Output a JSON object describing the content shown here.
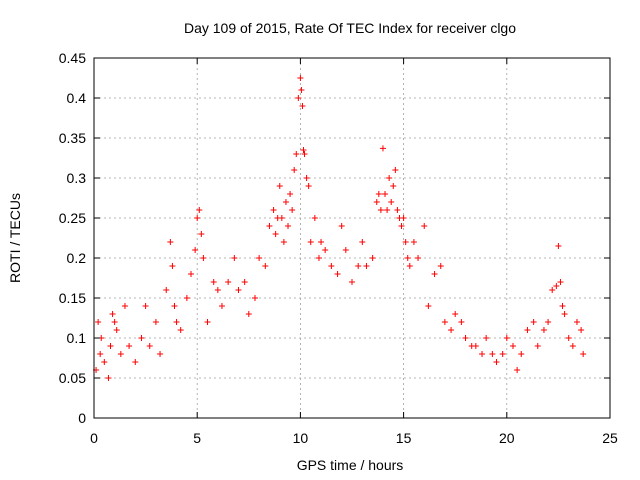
{
  "chart_data": {
    "type": "scatter",
    "title": "Day 109 of 2015, Rate Of TEC Index for receiver clgo",
    "xlabel": "GPS time / hours",
    "ylabel": "ROTI / TECUs",
    "xlim": [
      0,
      25
    ],
    "ylim": [
      0,
      0.45
    ],
    "xticks": [
      "0",
      "5",
      "10",
      "15",
      "20",
      "25"
    ],
    "yticks": [
      "0",
      "0.05",
      "0.1",
      "0.15",
      "0.2",
      "0.25",
      "0.3",
      "0.35",
      "0.4",
      "0.45"
    ],
    "grid": true,
    "marker": "+",
    "color": "#ff0000",
    "series": [
      {
        "x": [
          0.1,
          0.2,
          0.3,
          0.35,
          0.5,
          0.7,
          0.8,
          0.9,
          1.0,
          1.1,
          1.3,
          1.5,
          1.7,
          2.0,
          2.3,
          2.5,
          2.7,
          3.0,
          3.2,
          3.5,
          3.7,
          3.8,
          3.9,
          4.0,
          4.2,
          4.5,
          4.7,
          4.9,
          5.0,
          5.1,
          5.2,
          5.3,
          5.5,
          5.8,
          6.0,
          6.2,
          6.5,
          6.8,
          7.0,
          7.3,
          7.5,
          7.8,
          8.0,
          8.3,
          8.5,
          8.7,
          8.8,
          8.9,
          9.0,
          9.1,
          9.2,
          9.3,
          9.4,
          9.5,
          9.6,
          9.7,
          9.8,
          9.9,
          10.0,
          10.05,
          10.1,
          10.15,
          10.2,
          10.3,
          10.4,
          10.5,
          10.7,
          10.9,
          11.0,
          11.2,
          11.5,
          11.8,
          12.0,
          12.2,
          12.5,
          12.8,
          13.0,
          13.2,
          13.5,
          13.7,
          13.8,
          13.9,
          14.0,
          14.1,
          14.2,
          14.3,
          14.4,
          14.5,
          14.6,
          14.7,
          14.8,
          14.9,
          15.0,
          15.1,
          15.2,
          15.3,
          15.5,
          15.7,
          16.0,
          16.2,
          16.5,
          16.8,
          17.0,
          17.3,
          17.5,
          17.8,
          18.0,
          18.3,
          18.5,
          18.8,
          19.0,
          19.3,
          19.5,
          19.8,
          20.0,
          20.3,
          20.5,
          20.7,
          21.0,
          21.3,
          21.5,
          21.8,
          22.0,
          22.2,
          22.4,
          22.5,
          22.6,
          22.7,
          22.8,
          23.0,
          23.2,
          23.4,
          23.6,
          23.7
        ],
        "y": [
          0.06,
          0.12,
          0.08,
          0.1,
          0.07,
          0.05,
          0.09,
          0.13,
          0.12,
          0.11,
          0.08,
          0.14,
          0.09,
          0.07,
          0.1,
          0.14,
          0.09,
          0.12,
          0.08,
          0.16,
          0.22,
          0.19,
          0.14,
          0.12,
          0.11,
          0.15,
          0.18,
          0.21,
          0.25,
          0.26,
          0.23,
          0.2,
          0.12,
          0.17,
          0.16,
          0.14,
          0.17,
          0.2,
          0.16,
          0.17,
          0.13,
          0.15,
          0.2,
          0.19,
          0.24,
          0.26,
          0.23,
          0.25,
          0.29,
          0.25,
          0.22,
          0.27,
          0.24,
          0.28,
          0.26,
          0.31,
          0.33,
          0.4,
          0.425,
          0.41,
          0.39,
          0.335,
          0.33,
          0.3,
          0.29,
          0.22,
          0.25,
          0.2,
          0.22,
          0.21,
          0.19,
          0.18,
          0.24,
          0.21,
          0.17,
          0.19,
          0.22,
          0.19,
          0.2,
          0.27,
          0.28,
          0.26,
          0.337,
          0.28,
          0.26,
          0.3,
          0.27,
          0.29,
          0.31,
          0.26,
          0.25,
          0.24,
          0.25,
          0.22,
          0.2,
          0.19,
          0.22,
          0.2,
          0.24,
          0.14,
          0.18,
          0.19,
          0.12,
          0.11,
          0.13,
          0.12,
          0.1,
          0.09,
          0.09,
          0.08,
          0.1,
          0.08,
          0.07,
          0.08,
          0.1,
          0.09,
          0.06,
          0.08,
          0.11,
          0.12,
          0.09,
          0.11,
          0.12,
          0.16,
          0.165,
          0.215,
          0.17,
          0.14,
          0.13,
          0.1,
          0.09,
          0.12,
          0.11,
          0.08
        ]
      }
    ]
  }
}
